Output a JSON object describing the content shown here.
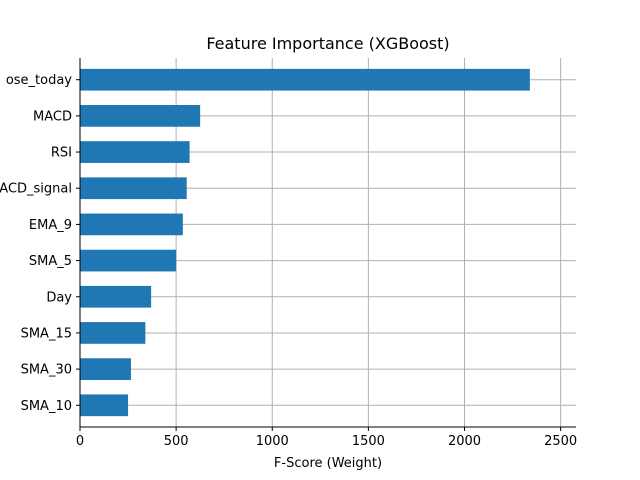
{
  "chart_data": {
    "type": "bar",
    "orientation": "horizontal",
    "title": "Feature Importance (XGBoost)",
    "xlabel": "F-Score (Weight)",
    "ylabel": "",
    "categories": [
      "SMA_10",
      "SMA_30",
      "SMA_15",
      "Day",
      "SMA_5",
      "EMA_9",
      "MACD_signal",
      "RSI",
      "MACD",
      "Close_today"
    ],
    "category_labels_visible": [
      "SMA_10",
      "SMA_30",
      "SMA_15",
      "Day",
      "SMA_5",
      "EMA_9",
      "ACD_signal",
      "RSI",
      "MACD",
      "ose_today"
    ],
    "values": [
      250,
      265,
      340,
      370,
      500,
      535,
      555,
      570,
      625,
      2340
    ],
    "xlim": [
      0,
      2580
    ],
    "xticks": [
      0,
      500,
      1000,
      1500,
      2000,
      2500
    ],
    "grid": true,
    "bar_color": "#1f77b4",
    "legend": false
  }
}
